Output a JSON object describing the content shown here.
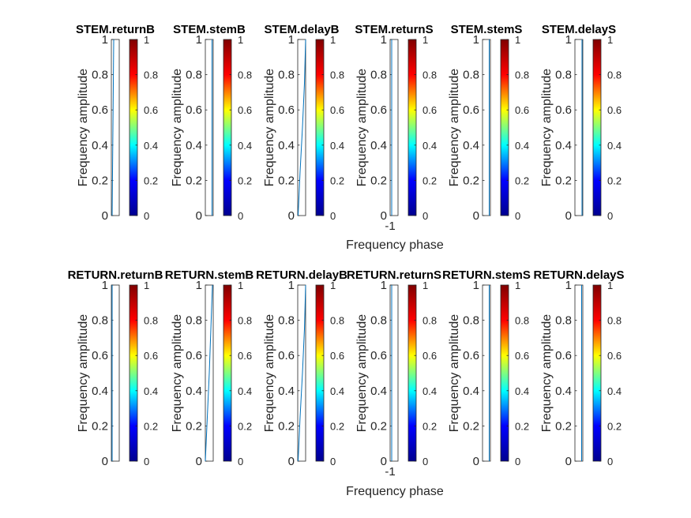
{
  "figure": {
    "xlabel": "Frequency phase",
    "ylabel": "Frequency amplitude",
    "colorbar_ticks": [
      "0",
      "0.2",
      "0.4",
      "0.6",
      "0.8",
      "1"
    ],
    "colormap": [
      "#00008f",
      "#0000ff",
      "#00ffff",
      "#ffff00",
      "#ff0000",
      "#800000"
    ],
    "line_color": "#0072bd"
  },
  "chart_data": [
    {
      "type": "line",
      "row": 0,
      "col": 0,
      "title": "STEM.returnB",
      "xlim": [
        0,
        1
      ],
      "ylim": [
        0,
        1
      ],
      "y_ticks": [
        "0",
        "0.2",
        "0.4",
        "0.6",
        "0.8",
        "1"
      ],
      "x_ticks": [],
      "series": [
        {
          "x": [
            0.1,
            0.15,
            0.2,
            0.25,
            0.3
          ],
          "y": [
            0,
            0.25,
            0.5,
            0.75,
            1
          ]
        }
      ]
    },
    {
      "type": "line",
      "row": 0,
      "col": 1,
      "title": "STEM.stemB",
      "xlim": [
        0,
        1
      ],
      "ylim": [
        0,
        1
      ],
      "y_ticks": [
        "0",
        "0.2",
        "0.4",
        "0.6",
        "0.8",
        "1"
      ],
      "x_ticks": [],
      "series": [
        {
          "x": [
            0.85,
            0.85,
            0.85
          ],
          "y": [
            0,
            0.5,
            1
          ]
        }
      ]
    },
    {
      "type": "line",
      "row": 0,
      "col": 2,
      "title": "STEM.delayB",
      "xlim": [
        0,
        1
      ],
      "ylim": [
        0,
        1
      ],
      "y_ticks": [
        "0",
        "0.2",
        "0.4",
        "0.6",
        "0.8",
        "1"
      ],
      "x_ticks": [],
      "series": [
        {
          "x": [
            0.05,
            0.3,
            0.6,
            0.85,
            1.0
          ],
          "y": [
            0,
            0.25,
            0.5,
            0.75,
            1
          ]
        }
      ]
    },
    {
      "type": "line",
      "row": 0,
      "col": 3,
      "title": "STEM.returnS",
      "xlim": [
        -1,
        1
      ],
      "ylim": [
        0,
        1
      ],
      "y_ticks": [
        "0",
        "0.2",
        "0.4",
        "0.6",
        "0.8",
        "1"
      ],
      "x_ticks": [
        "-1"
      ],
      "series": [
        {
          "x": [
            -0.6,
            -0.6,
            -0.6
          ],
          "y": [
            0,
            0.5,
            1
          ]
        }
      ]
    },
    {
      "type": "line",
      "row": 0,
      "col": 4,
      "title": "STEM.stemS",
      "xlim": [
        0,
        1
      ],
      "ylim": [
        0,
        1
      ],
      "y_ticks": [
        "0",
        "0.2",
        "0.4",
        "0.6",
        "0.8",
        "1"
      ],
      "x_ticks": [],
      "series": [
        {
          "x": [
            0.85,
            0.85,
            0.85
          ],
          "y": [
            0,
            0.5,
            1
          ]
        }
      ]
    },
    {
      "type": "line",
      "row": 0,
      "col": 5,
      "title": "STEM.delayS",
      "xlim": [
        0,
        1
      ],
      "ylim": [
        0,
        1
      ],
      "y_ticks": [
        "0",
        "0.2",
        "0.4",
        "0.6",
        "0.8",
        "1"
      ],
      "x_ticks": [],
      "series": [
        {
          "x": [
            0.9,
            0.9,
            0.9
          ],
          "y": [
            0,
            0.5,
            1
          ]
        }
      ]
    },
    {
      "type": "line",
      "row": 1,
      "col": 0,
      "title": "RETURN.returnB",
      "xlim": [
        0,
        1
      ],
      "ylim": [
        0,
        1
      ],
      "y_ticks": [
        "0",
        "0.2",
        "0.4",
        "0.6",
        "0.8",
        "1"
      ],
      "x_ticks": [],
      "series": [
        {
          "x": [
            0.1,
            0.1,
            0.1
          ],
          "y": [
            0,
            0.5,
            1
          ]
        }
      ]
    },
    {
      "type": "line",
      "row": 1,
      "col": 1,
      "title": "RETURN.stemB",
      "xlim": [
        0,
        1
      ],
      "ylim": [
        0,
        1
      ],
      "y_ticks": [
        "0",
        "0.2",
        "0.4",
        "0.6",
        "0.8",
        "1"
      ],
      "x_ticks": [],
      "series": [
        {
          "x": [
            0.0,
            0.25,
            0.5,
            0.7,
            0.9
          ],
          "y": [
            0,
            0.25,
            0.5,
            0.75,
            1
          ]
        }
      ]
    },
    {
      "type": "line",
      "row": 1,
      "col": 2,
      "title": "RETURN.delayB",
      "xlim": [
        0,
        1
      ],
      "ylim": [
        0,
        1
      ],
      "y_ticks": [
        "0",
        "0.2",
        "0.4",
        "0.6",
        "0.8",
        "1"
      ],
      "x_ticks": [],
      "series": [
        {
          "x": [
            0.05,
            0.3,
            0.6,
            0.85,
            1.0
          ],
          "y": [
            0,
            0.25,
            0.5,
            0.75,
            1
          ]
        }
      ]
    },
    {
      "type": "line",
      "row": 1,
      "col": 3,
      "title": "RETURN.returnS",
      "xlim": [
        -1,
        1
      ],
      "ylim": [
        0,
        1
      ],
      "y_ticks": [
        "0",
        "0.2",
        "0.4",
        "0.6",
        "0.8",
        "1"
      ],
      "x_ticks": [
        "-1"
      ],
      "series": [
        {
          "x": [
            -0.6,
            -0.6,
            -0.6
          ],
          "y": [
            0,
            0.5,
            1
          ]
        }
      ]
    },
    {
      "type": "line",
      "row": 1,
      "col": 4,
      "title": "RETURN.stemS",
      "xlim": [
        0,
        1
      ],
      "ylim": [
        0,
        1
      ],
      "y_ticks": [
        "0",
        "0.2",
        "0.4",
        "0.6",
        "0.8",
        "1"
      ],
      "x_ticks": [],
      "series": [
        {
          "x": [
            0.85,
            0.85,
            0.85
          ],
          "y": [
            0,
            0.5,
            1
          ]
        }
      ]
    },
    {
      "type": "line",
      "row": 1,
      "col": 5,
      "title": "RETURN.delayS",
      "xlim": [
        0,
        1
      ],
      "ylim": [
        0,
        1
      ],
      "y_ticks": [
        "0",
        "0.2",
        "0.4",
        "0.6",
        "0.8",
        "1"
      ],
      "x_ticks": [],
      "series": [
        {
          "x": [
            0.85,
            0.85,
            0.85
          ],
          "y": [
            0,
            0.5,
            1
          ]
        }
      ]
    }
  ]
}
